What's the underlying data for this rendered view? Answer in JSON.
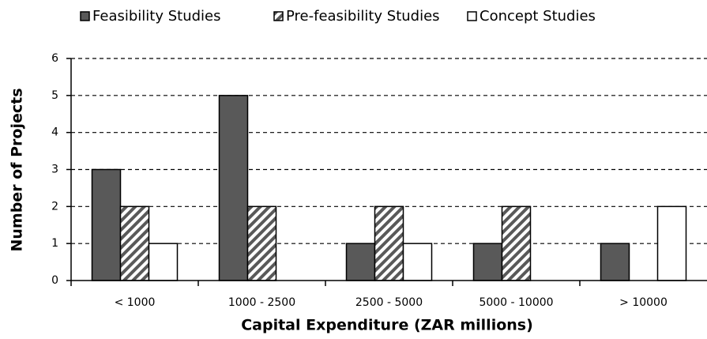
{
  "chart_data": {
    "type": "bar",
    "x_label": "Capital Expenditure (ZAR millions)",
    "y_label": "Number of Projects",
    "categories": [
      "< 1000",
      "1000 - 2500",
      "2500 - 5000",
      "5000 - 10000",
      "> 10000"
    ],
    "series": [
      {
        "name": "Feasibility Studies",
        "color": "#595959",
        "values": [
          3,
          5,
          1,
          1,
          1
        ]
      },
      {
        "name": "Pre-feasibility Studies",
        "color": "#ffffff",
        "pattern": "diagonal",
        "values": [
          2,
          2,
          2,
          2,
          0
        ]
      },
      {
        "name": "Concept Studies",
        "color": "#ffffff",
        "values": [
          1,
          0,
          1,
          0,
          2
        ]
      }
    ],
    "ylim": [
      0,
      6
    ],
    "yticks": [
      0,
      1,
      2,
      3,
      4,
      5,
      6
    ],
    "grid": true,
    "legend": "top"
  }
}
